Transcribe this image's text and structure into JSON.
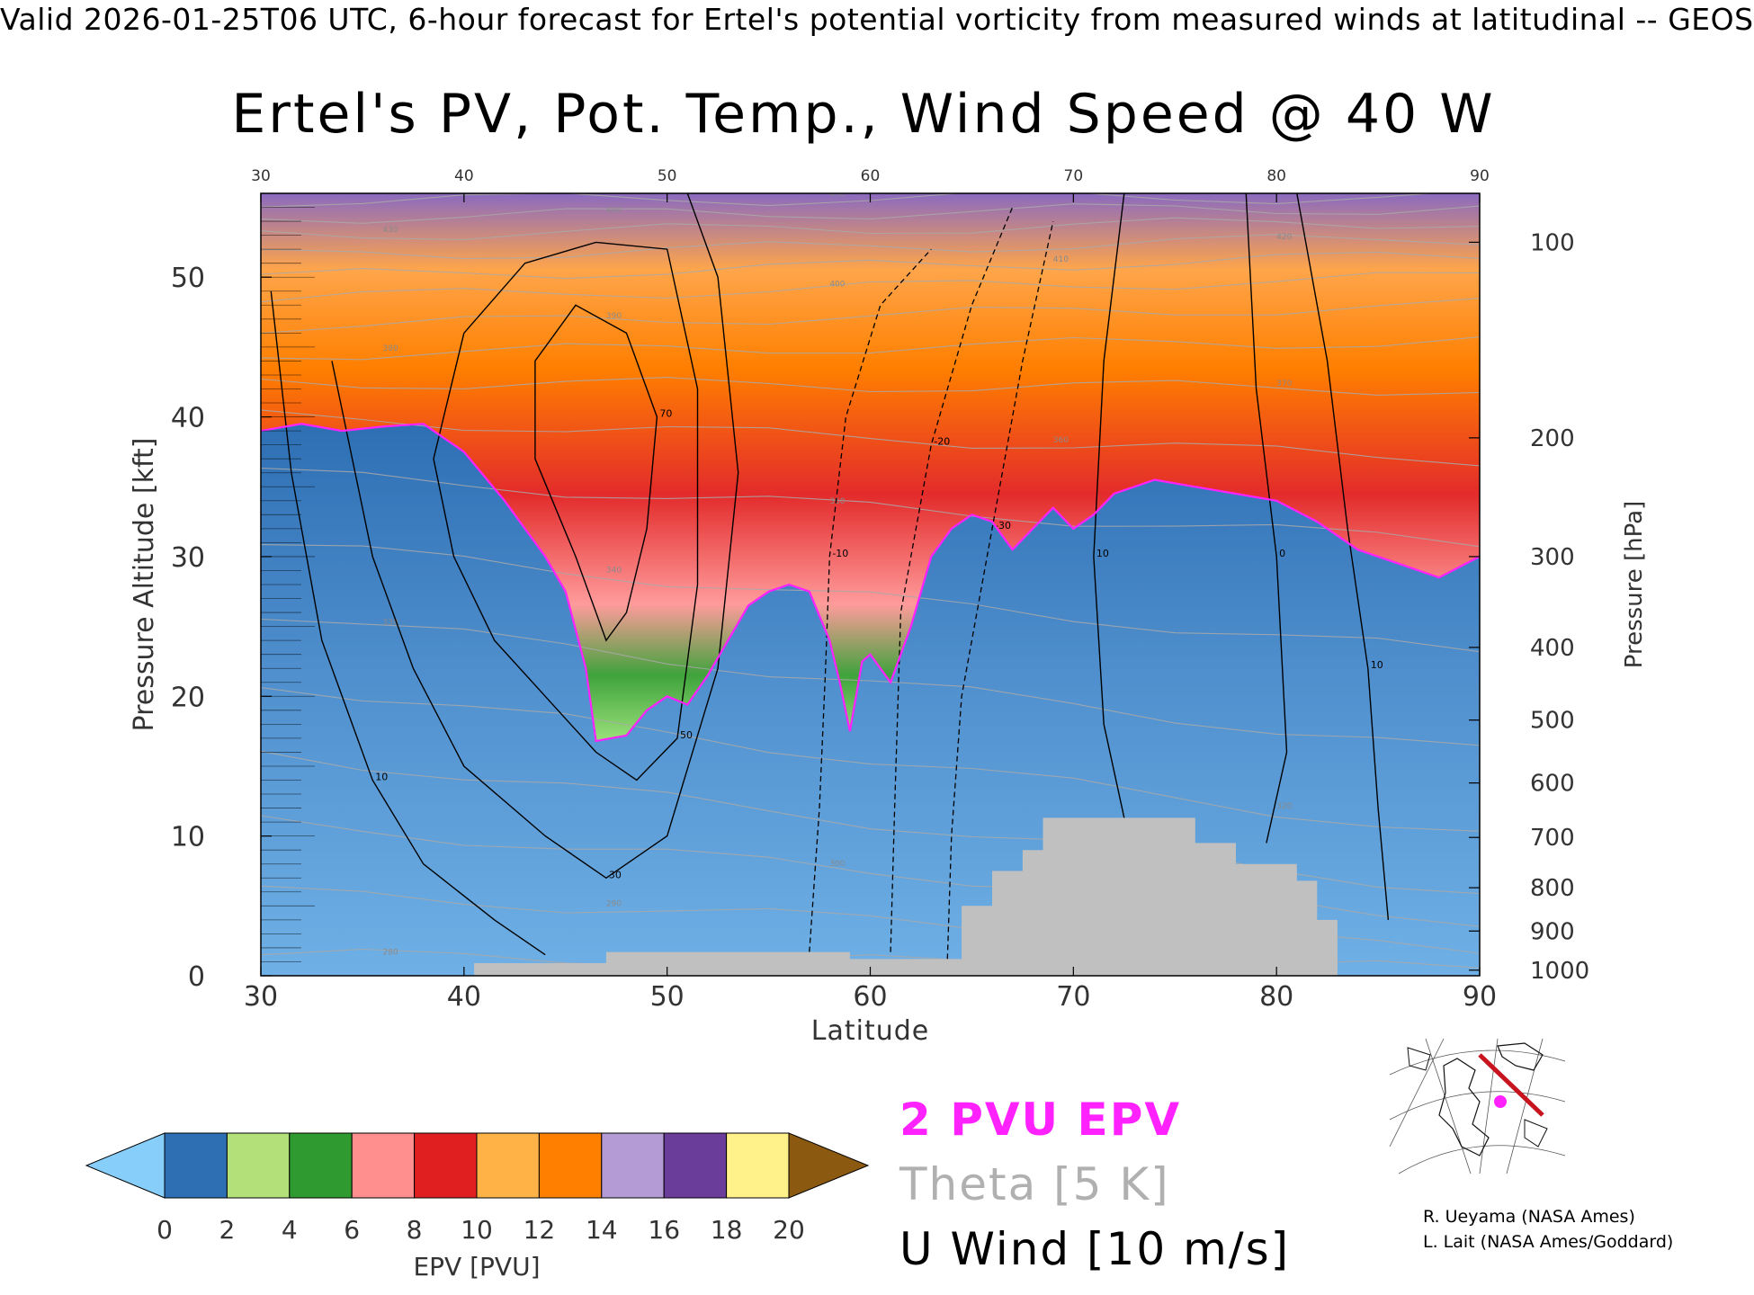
{
  "header": "Valid 2026-01-25T06 UTC, 6-hour forecast for Ertel's potential vorticity from measured winds at latitudinal -- GEOS",
  "title": "Ertel's PV, Pot. Temp., Wind Speed @ 40 W",
  "chart_data": {
    "type": "heatmap",
    "xlabel": "Latitude",
    "ylabel": "Pressure Altitude [kft]",
    "y2label": "Pressure [hPa]",
    "xlim": [
      30,
      90
    ],
    "ylim": [
      0,
      56
    ],
    "x_ticks": [
      30,
      40,
      50,
      60,
      70,
      80,
      90
    ],
    "y_ticks": [
      0,
      10,
      20,
      30,
      40,
      50
    ],
    "pressure_ticks": [
      {
        "label": "100",
        "kft": 52.5
      },
      {
        "label": "200",
        "kft": 38.5
      },
      {
        "label": "300",
        "kft": 30
      },
      {
        "label": "400",
        "kft": 23.5
      },
      {
        "label": "500",
        "kft": 18.3
      },
      {
        "label": "600",
        "kft": 13.8
      },
      {
        "label": "700",
        "kft": 9.9
      },
      {
        "label": "800",
        "kft": 6.3
      },
      {
        "label": "900",
        "kft": 3.2
      },
      {
        "label": "1000",
        "kft": 0.4
      }
    ],
    "colorbar": {
      "label": "EPV [PVU]",
      "tick_labels": [
        "0",
        "2",
        "4",
        "6",
        "8",
        "10",
        "12",
        "14",
        "16",
        "18",
        "20"
      ],
      "colors_low_to_high": [
        "#87cefa",
        "#2e6fb4",
        "#b4e07a",
        "#2f9a2f",
        "#ff8f8f",
        "#e02020",
        "#ffb347",
        "#ff7f00",
        "#b49bd6",
        "#6a3d9a",
        "#fff28a",
        "#8b5a10"
      ]
    },
    "tropopause_2pvu_kft": [
      [
        30,
        39
      ],
      [
        32,
        39.5
      ],
      [
        34,
        39
      ],
      [
        36,
        39.3
      ],
      [
        38,
        39.5
      ],
      [
        40,
        37.5
      ],
      [
        42,
        34
      ],
      [
        44,
        30
      ],
      [
        45,
        27.5
      ],
      [
        46,
        22
      ],
      [
        46.5,
        16.8
      ],
      [
        48,
        17.2
      ],
      [
        49,
        19
      ],
      [
        50,
        20
      ],
      [
        51,
        19.4
      ],
      [
        52,
        21.5
      ],
      [
        53,
        24
      ],
      [
        54,
        26.5
      ],
      [
        55,
        27.5
      ],
      [
        56,
        28
      ],
      [
        57,
        27.5
      ],
      [
        58,
        24
      ],
      [
        58.5,
        21
      ],
      [
        59,
        17.5
      ],
      [
        59.6,
        22.5
      ],
      [
        60,
        23
      ],
      [
        61,
        21
      ],
      [
        62,
        25
      ],
      [
        63,
        30
      ],
      [
        64,
        32
      ],
      [
        65,
        33
      ],
      [
        66,
        32.5
      ],
      [
        67,
        30.5
      ],
      [
        68,
        32
      ],
      [
        69,
        33.5
      ],
      [
        70,
        32
      ],
      [
        71,
        33
      ],
      [
        72,
        34.5
      ],
      [
        74,
        35.5
      ],
      [
        76,
        35
      ],
      [
        78,
        34.5
      ],
      [
        80,
        34
      ],
      [
        82,
        32.5
      ],
      [
        84,
        30.5
      ],
      [
        86,
        29.5
      ],
      [
        88,
        28.5
      ],
      [
        90,
        30
      ]
    ],
    "surface_kft": [
      [
        30,
        0
      ],
      [
        40.5,
        0
      ],
      [
        40.5,
        0.9
      ],
      [
        47,
        0.9
      ],
      [
        47,
        1.7
      ],
      [
        59,
        1.7
      ],
      [
        59,
        1.2
      ],
      [
        64.5,
        1.2
      ],
      [
        64.5,
        5
      ],
      [
        66,
        5
      ],
      [
        66,
        7.5
      ],
      [
        67.5,
        7.5
      ],
      [
        67.5,
        9
      ],
      [
        68.5,
        9
      ],
      [
        68.5,
        11.3
      ],
      [
        76,
        11.3
      ],
      [
        76,
        9.5
      ],
      [
        78,
        9.5
      ],
      [
        78,
        8
      ],
      [
        81,
        8
      ],
      [
        81,
        6.8
      ],
      [
        82,
        6.8
      ],
      [
        82,
        4
      ],
      [
        83,
        4
      ],
      [
        83,
        0
      ],
      [
        90,
        0
      ]
    ],
    "u_wind_contours": [
      {
        "label": "70",
        "points": [
          [
            43.5,
            37
          ],
          [
            45.5,
            30
          ],
          [
            47,
            24
          ],
          [
            48,
            26
          ],
          [
            49,
            32
          ],
          [
            49.5,
            40
          ],
          [
            48,
            46
          ],
          [
            45.5,
            48
          ],
          [
            43.5,
            44
          ],
          [
            43.5,
            37
          ]
        ]
      },
      {
        "label": "50",
        "points": [
          [
            40,
            46
          ],
          [
            38.5,
            37
          ],
          [
            39.5,
            30
          ],
          [
            41.5,
            24
          ],
          [
            44,
            20
          ],
          [
            46.5,
            16
          ],
          [
            48.5,
            14
          ],
          [
            50.5,
            17
          ],
          [
            51.5,
            28
          ],
          [
            51.5,
            42
          ],
          [
            50,
            52
          ],
          [
            46.5,
            52.5
          ],
          [
            43,
            51
          ],
          [
            40,
            46
          ]
        ]
      },
      {
        "label": "30",
        "points": [
          [
            33.5,
            44
          ],
          [
            35.5,
            30
          ],
          [
            37.5,
            22
          ],
          [
            40,
            15
          ],
          [
            44,
            10
          ],
          [
            47,
            7
          ],
          [
            50,
            10
          ],
          [
            52.5,
            22
          ],
          [
            53.5,
            36
          ],
          [
            52.5,
            50
          ],
          [
            51,
            56
          ]
        ]
      },
      {
        "label": "10",
        "points": [
          [
            30.5,
            49
          ],
          [
            31.5,
            36
          ],
          [
            33,
            24
          ],
          [
            35.5,
            14
          ],
          [
            38,
            8
          ],
          [
            41.5,
            4
          ],
          [
            44,
            1.5
          ]
        ]
      },
      {
        "label": "10",
        "points": [
          [
            72.5,
            56
          ],
          [
            71.5,
            44
          ],
          [
            71,
            30
          ],
          [
            71.5,
            18
          ],
          [
            72.5,
            11.3
          ]
        ]
      },
      {
        "label": "10",
        "points": [
          [
            81,
            56
          ],
          [
            82.5,
            44
          ],
          [
            83.5,
            32
          ],
          [
            84.5,
            22
          ],
          [
            85,
            12
          ],
          [
            85.5,
            4
          ]
        ]
      },
      {
        "label": "0",
        "points": [
          [
            78.5,
            56
          ],
          [
            79,
            42
          ],
          [
            80,
            30
          ],
          [
            80.5,
            16
          ],
          [
            79.5,
            9.5
          ]
        ]
      }
    ],
    "u_wind_negative_contours": [
      {
        "label": "-10",
        "points": [
          [
            57,
            1.7
          ],
          [
            57.5,
            12
          ],
          [
            57.8,
            22
          ],
          [
            58,
            30
          ],
          [
            58.8,
            40
          ],
          [
            60.5,
            48
          ],
          [
            63,
            52
          ]
        ]
      },
      {
        "label": "-20",
        "points": [
          [
            61,
            1.7
          ],
          [
            61.2,
            12
          ],
          [
            61.5,
            26
          ],
          [
            63,
            38
          ],
          [
            65,
            48
          ],
          [
            67,
            55
          ]
        ]
      },
      {
        "label": "-30",
        "points": [
          [
            63.8,
            1.2
          ],
          [
            64,
            10
          ],
          [
            64.5,
            20
          ],
          [
            66,
            32
          ],
          [
            67.5,
            44
          ],
          [
            69,
            54
          ]
        ]
      }
    ],
    "theta_contours_kft": {
      "levels_K": [
        "280",
        "290",
        "300",
        "310",
        "320",
        "330",
        "340",
        "350",
        "360",
        "370",
        "380",
        "390",
        "400",
        "410",
        "420",
        "430",
        "440",
        "450"
      ],
      "kft_at_30N": [
        1.5,
        6,
        11,
        16,
        21,
        26,
        31,
        36,
        40,
        42.5,
        44.5,
        46.5,
        48.5,
        50,
        51.5,
        53,
        54.3,
        55.5
      ],
      "kft_at_90N": [
        0.5,
        2,
        4,
        6,
        10,
        16,
        23,
        31,
        37,
        42,
        45.5,
        48,
        50,
        51.5,
        52.8,
        54,
        55,
        55.8
      ]
    },
    "legend": [
      "2 PVU EPV",
      "Theta [5 K]",
      "U Wind [10 m/s]"
    ],
    "colors": {
      "pv2": "#ff22ff",
      "theta": "#a9a9a9",
      "uwind": "#000000",
      "terrain": "#c0c0c0"
    }
  },
  "inset_map": {
    "name": "cross-section location map",
    "colors": {
      "track": "#c8141e",
      "marker": "#ff22ff"
    }
  },
  "credits": [
    "R. Ueyama (NASA Ames)",
    "L. Lait (NASA Ames/Goddard)"
  ]
}
